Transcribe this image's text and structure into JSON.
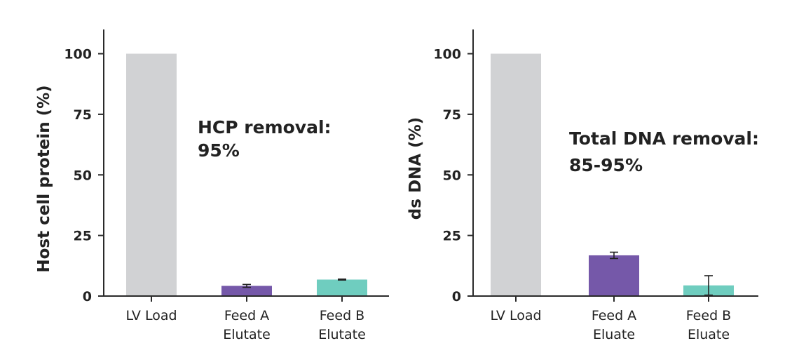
{
  "colors": {
    "lv_load": "#d1d2d4",
    "feed_a": "#7558a9",
    "feed_b": "#6fcdbf",
    "axis": "#2a2a2a"
  },
  "chart_data": [
    {
      "type": "bar",
      "categories": [
        [
          "LV Load"
        ],
        [
          "Feed A",
          "Elutate"
        ],
        [
          "Feed B",
          "Elutate"
        ]
      ],
      "values": [
        100,
        4.2,
        6.8
      ],
      "errors": [
        0,
        0.6,
        0.2
      ],
      "colors": [
        "#d1d2d4",
        "#7558a9",
        "#6fcdbf"
      ],
      "ylabel": "Host cell protein (%)",
      "xlabel": "",
      "ylim": [
        0,
        110
      ],
      "yticks": [
        0,
        25,
        50,
        75,
        100
      ],
      "annotation": [
        "HCP removal:",
        "95%"
      ],
      "grid": false
    },
    {
      "type": "bar",
      "categories": [
        [
          "LV Load"
        ],
        [
          "Feed A",
          "Eluate"
        ],
        [
          "Feed B",
          "Eluate"
        ]
      ],
      "values": [
        100,
        16.8,
        4.4
      ],
      "errors": [
        0,
        1.3,
        4.0
      ],
      "colors": [
        "#d1d2d4",
        "#7558a9",
        "#6fcdbf"
      ],
      "ylabel": "ds DNA (%)",
      "xlabel": "",
      "ylim": [
        0,
        110
      ],
      "yticks": [
        0,
        25,
        50,
        75,
        100
      ],
      "annotation": [
        "Total DNA removal:",
        "85-95%"
      ],
      "grid": false
    }
  ]
}
